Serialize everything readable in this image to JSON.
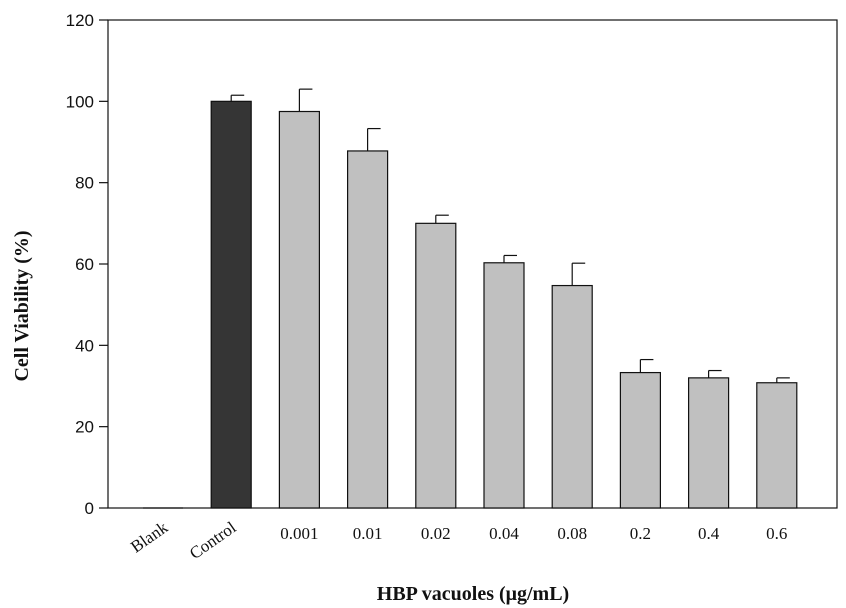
{
  "chart_data": {
    "type": "bar",
    "title": "",
    "xlabel": "HBP vacuoles (μg/mL)",
    "ylabel": "Cell Viability (%)",
    "ylim": [
      0,
      120
    ],
    "yticks": [
      0,
      20,
      40,
      60,
      80,
      100,
      120
    ],
    "categories": [
      "Blank",
      "Control",
      "0.001",
      "0.01",
      "0.02",
      "0.04",
      "0.08",
      "0.2",
      "0.4",
      "0.6"
    ],
    "values": [
      0,
      100,
      97.5,
      87.8,
      70,
      60.3,
      54.7,
      33.3,
      32,
      30.8
    ],
    "error": [
      0,
      1.5,
      5.5,
      5.5,
      2,
      1.8,
      5.5,
      3.2,
      1.8,
      1.2
    ],
    "bar_colors": [
      "#c0c0c0",
      "#353535",
      "#c0c0c0",
      "#c0c0c0",
      "#c0c0c0",
      "#c0c0c0",
      "#c0c0c0",
      "#c0c0c0",
      "#c0c0c0",
      "#c0c0c0"
    ],
    "grid": false,
    "legend": "none"
  }
}
